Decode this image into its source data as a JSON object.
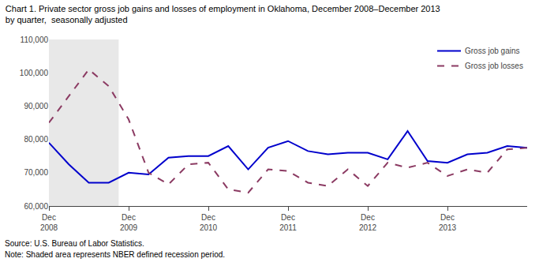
{
  "chart_data": {
    "type": "line",
    "title": "Chart 1. Private sector gross job gains and losses of employment in Oklahoma, December 2008–December 2013",
    "subtitle": "by quarter,  seasonally adjusted",
    "annotations": [
      "Source: U.S. Bureau of Labor Statistics.",
      "Note: Shaded area represents NBER defined recession period."
    ],
    "categories": [
      "Dec\n2008",
      null,
      null,
      null,
      "Dec\n2009",
      null,
      null,
      null,
      "Dec\n2010",
      null,
      null,
      null,
      "Dec\n2011",
      null,
      null,
      null,
      "Dec\n2012",
      null,
      null,
      null,
      "Dec\n2013",
      null,
      null,
      null,
      null
    ],
    "series": [
      {
        "name": "Gross job gains",
        "color": "#0000cc",
        "line_style": "solid",
        "values": [
          79000,
          72500,
          67000,
          67000,
          70000,
          69500,
          74500,
          75000,
          75000,
          78000,
          71000,
          77500,
          79500,
          76500,
          75500,
          76000,
          76000,
          74000,
          82500,
          73500,
          73000,
          75500,
          76000,
          78000,
          77500
        ]
      },
      {
        "name": "Gross job losses",
        "color": "#8b3a62",
        "line_style": "dashed",
        "values": [
          85000,
          93000,
          101000,
          96000,
          86000,
          70000,
          66500,
          72500,
          73000,
          65000,
          64000,
          71000,
          70500,
          67000,
          66000,
          71000,
          66000,
          73000,
          71500,
          73000,
          69000,
          71000,
          70000,
          77000,
          77500
        ]
      }
    ],
    "shaded_span": {
      "from": 0,
      "to": 3.5,
      "color": "#e8e8e8"
    },
    "ylim": [
      60000,
      110000
    ],
    "yticks": [
      {
        "value": 60000,
        "label": "60,000"
      },
      {
        "value": 70000,
        "label": "70,000"
      },
      {
        "value": 80000,
        "label": "80,000"
      },
      {
        "value": 90000,
        "label": "90,000"
      },
      {
        "value": 100000,
        "label": "100,000"
      },
      {
        "value": 110000,
        "label": "110,000"
      }
    ],
    "grid": false,
    "legend": "upper right"
  }
}
